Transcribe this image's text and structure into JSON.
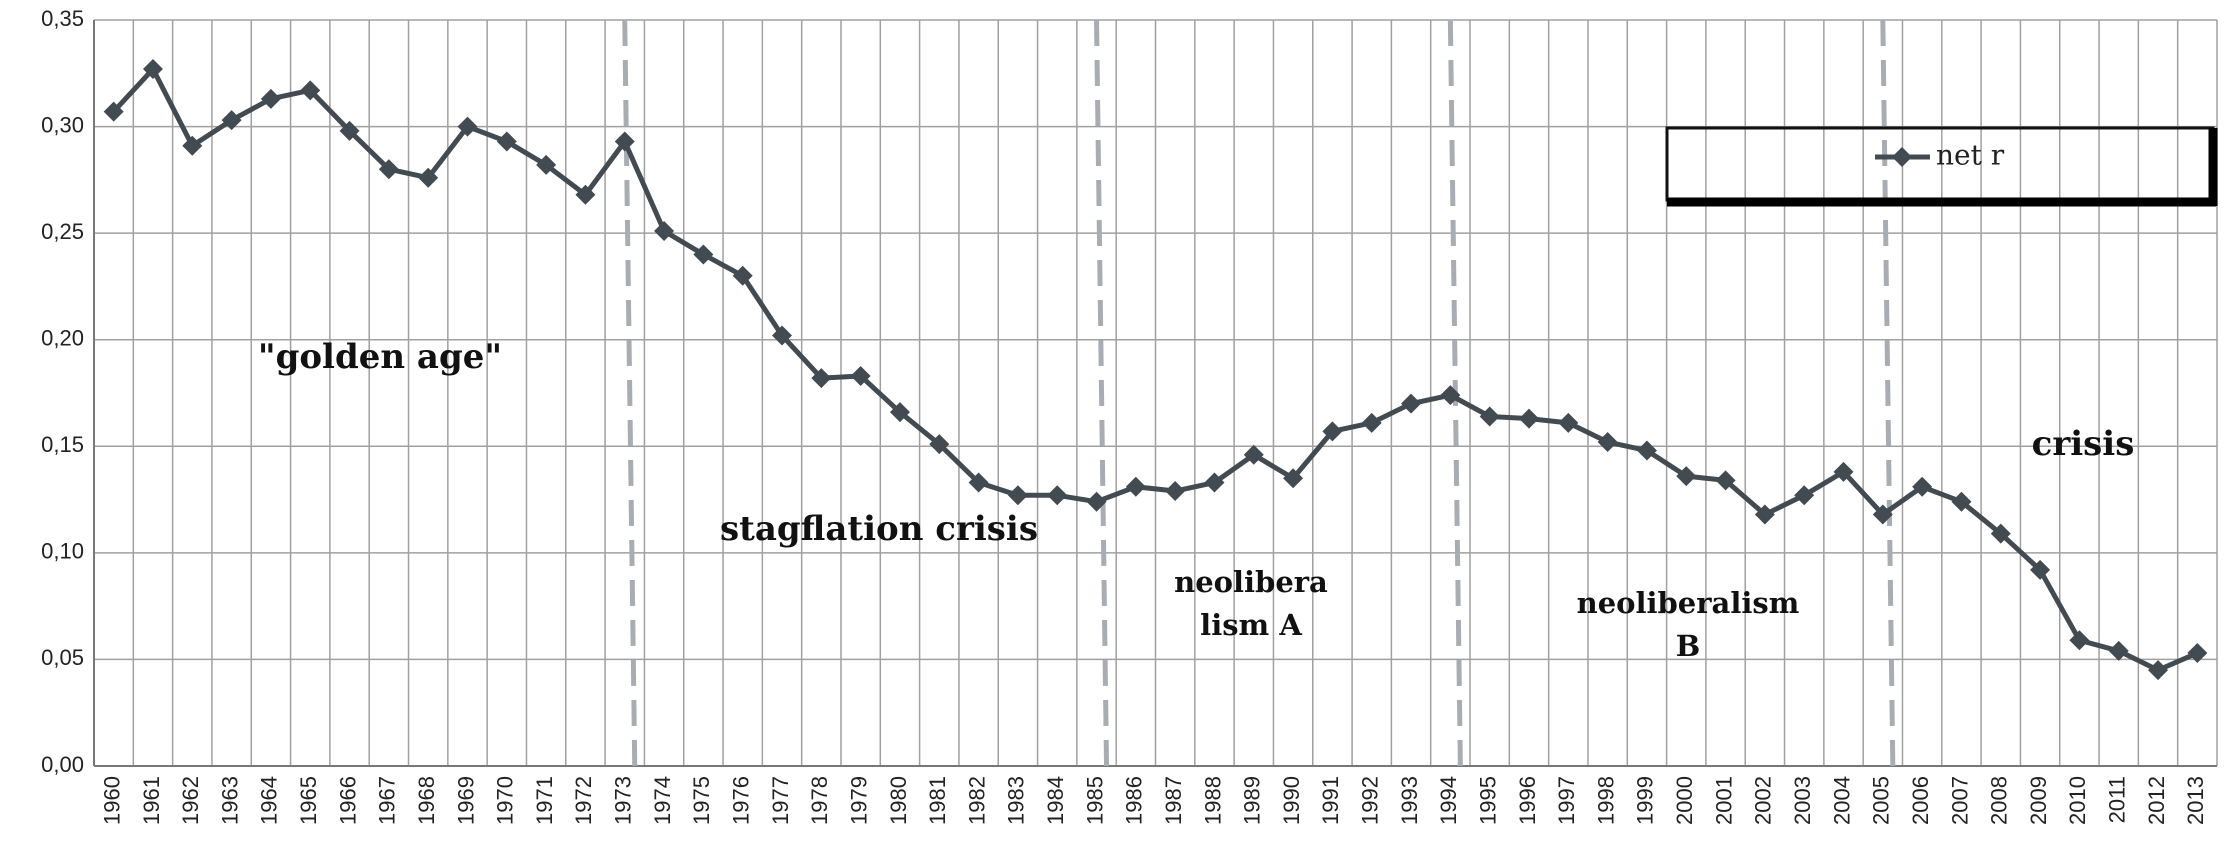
{
  "chart_data": {
    "type": "line",
    "categories": [
      "1960",
      "1961",
      "1962",
      "1963",
      "1964",
      "1965",
      "1966",
      "1967",
      "1968",
      "1969",
      "1970",
      "1971",
      "1972",
      "1973",
      "1974",
      "1975",
      "1976",
      "1977",
      "1978",
      "1979",
      "1980",
      "1981",
      "1982",
      "1983",
      "1984",
      "1985",
      "1986",
      "1987",
      "1988",
      "1989",
      "1990",
      "1991",
      "1992",
      "1993",
      "1994",
      "1995",
      "1996",
      "1997",
      "1998",
      "1999",
      "2000",
      "2001",
      "2002",
      "2003",
      "2004",
      "2005",
      "2006",
      "2007",
      "2008",
      "2009",
      "2010",
      "2011",
      "2012",
      "2013"
    ],
    "series": [
      {
        "name": "net r",
        "color": "#434b52",
        "values": [
          0.307,
          0.327,
          0.291,
          0.303,
          0.313,
          0.317,
          0.298,
          0.28,
          0.276,
          0.3,
          0.293,
          0.282,
          0.268,
          0.293,
          0.251,
          0.24,
          0.23,
          0.202,
          0.182,
          0.183,
          0.166,
          0.151,
          0.133,
          0.127,
          0.127,
          0.124,
          0.131,
          0.129,
          0.133,
          0.146,
          0.135,
          0.157,
          0.161,
          0.17,
          0.174,
          0.164,
          0.163,
          0.161,
          0.152,
          0.148,
          0.136,
          0.134,
          0.118,
          0.127,
          0.138,
          0.118,
          0.131,
          0.124,
          0.109,
          0.092,
          0.059,
          0.054,
          0.045,
          0.053
        ]
      }
    ],
    "ylim": [
      0,
      0.35
    ],
    "yticks": [
      {
        "value": 0,
        "label": "0,00"
      },
      {
        "value": 0.05,
        "label": "0,05"
      },
      {
        "value": 0.1,
        "label": "0,10"
      },
      {
        "value": 0.15,
        "label": "0,15"
      },
      {
        "value": 0.2,
        "label": "0,20"
      },
      {
        "value": 0.25,
        "label": "0,25"
      },
      {
        "value": 0.3,
        "label": "0,30"
      },
      {
        "value": 0.35,
        "label": "0,35"
      }
    ],
    "grid": true,
    "legend": "top-right",
    "period_dividers": [
      "1973",
      "1985",
      "1994",
      "2005"
    ],
    "annotations": [
      {
        "lines": [
          "\"golden age\""
        ]
      },
      {
        "lines": [
          "stagflation crisis"
        ]
      },
      {
        "lines": [
          "neolibera",
          "lism A"
        ]
      },
      {
        "lines": [
          "neoliberalism",
          "B"
        ]
      },
      {
        "lines": [
          "crisis"
        ]
      }
    ]
  }
}
